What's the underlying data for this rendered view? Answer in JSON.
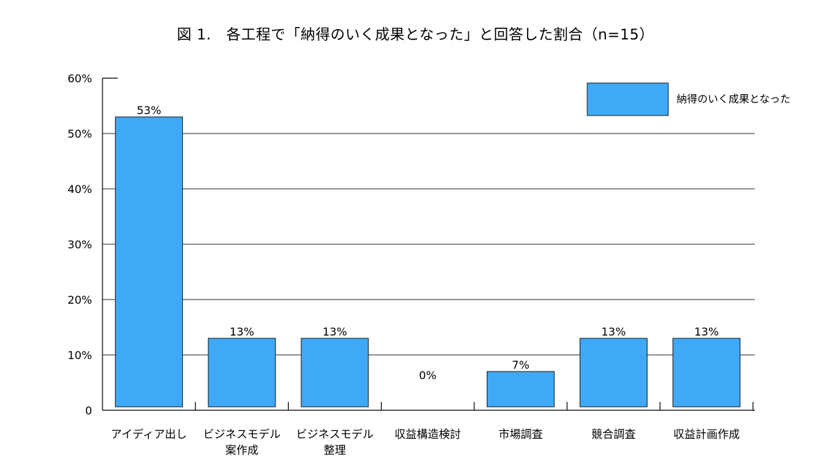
{
  "chart_data": {
    "type": "bar",
    "title": "図 1.　各工程で「納得のいく成果となった」と回答した割合（n=15）",
    "categories": [
      [
        "アイディア出し"
      ],
      [
        "ビジネスモデル",
        "案作成"
      ],
      [
        "ビジネスモデル",
        "整理"
      ],
      [
        "収益構造検討"
      ],
      [
        "市場調査"
      ],
      [
        "競合調査"
      ],
      [
        "収益計画作成"
      ]
    ],
    "series": [
      {
        "name": "納得のいく成果となった",
        "values": [
          53,
          13,
          13,
          0,
          7,
          13,
          13
        ]
      }
    ],
    "data_labels": [
      "53%",
      "13%",
      "13%",
      "0%",
      "7%",
      "13%",
      "13%"
    ],
    "y_ticks": [
      "0",
      "10%",
      "20%",
      "30%",
      "40%",
      "50%",
      "60%"
    ],
    "ylim": [
      0,
      60
    ],
    "xlabel": "",
    "ylabel": "",
    "legend_position": "top-right",
    "grid": true,
    "colors": {
      "bar": "#3fa9f5",
      "bar_border": "#1a1a1a",
      "grid": "#555555",
      "axis": "#000000"
    }
  }
}
